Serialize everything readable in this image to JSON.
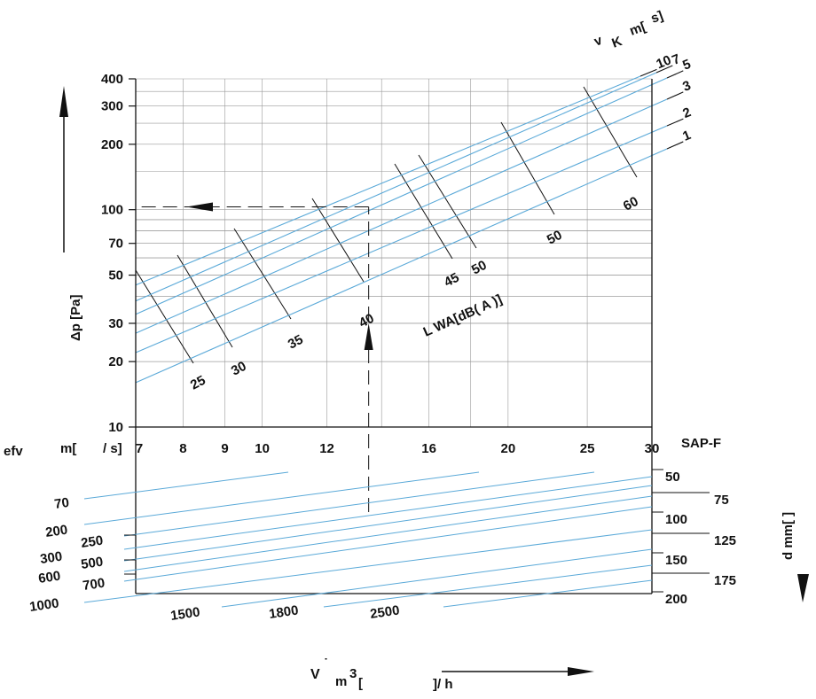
{
  "colors": {
    "guide_line": "#5aa9d8",
    "ink": "#111111",
    "grid": "#9a9a9a"
  },
  "chart_data": {
    "type": "line",
    "title": "",
    "ylabel": "Δp [Pa]",
    "y_scale": "log",
    "ylim": [
      10,
      400
    ],
    "y_ticks": [
      "10",
      "20",
      "30",
      "50",
      "70",
      "100",
      "200",
      "300",
      "400"
    ],
    "x_scale": "log",
    "xlim": [
      7,
      30
    ],
    "x_ticks": [
      "7",
      "8",
      "9",
      "10",
      "12",
      "16",
      "20",
      "25",
      "30"
    ],
    "x_axis_label_parts": [
      "efv",
      "m[",
      "/ s]"
    ],
    "velocity_label_parts": [
      "v",
      "K",
      "m[",
      "s]"
    ],
    "velocity_lines": [
      {
        "label": "1",
        "dp_at_7": 16
      },
      {
        "label": "2",
        "dp_at_7": 22
      },
      {
        "label": "3",
        "dp_at_7": 27
      },
      {
        "label": "5",
        "dp_at_7": 33
      },
      {
        "label": "7",
        "dp_at_7": 38
      },
      {
        "label": "10",
        "dp_at_7": 45
      }
    ],
    "sound_label": "L WA[dB( A )]",
    "sound_levels": [
      "25",
      "30",
      "35",
      "40",
      "45",
      "50",
      "50",
      "60"
    ],
    "example_path": {
      "velocity": 13.5,
      "pressure": 103
    },
    "nomogram": {
      "header": "SAP-F",
      "diameter_label": "d mm[ ]",
      "diameters": [
        "50",
        "75",
        "100",
        "125",
        "150",
        "175",
        "200"
      ],
      "flow_labels_left": [
        "70",
        "200",
        "250",
        "300",
        "500",
        "600",
        "700",
        "1000"
      ],
      "flow_labels_bottom": [
        "1500",
        "1800",
        "2500"
      ],
      "flow_axis_label_parts": [
        "V",
        "˙",
        "m",
        "3",
        "[",
        "]/ h"
      ]
    }
  }
}
